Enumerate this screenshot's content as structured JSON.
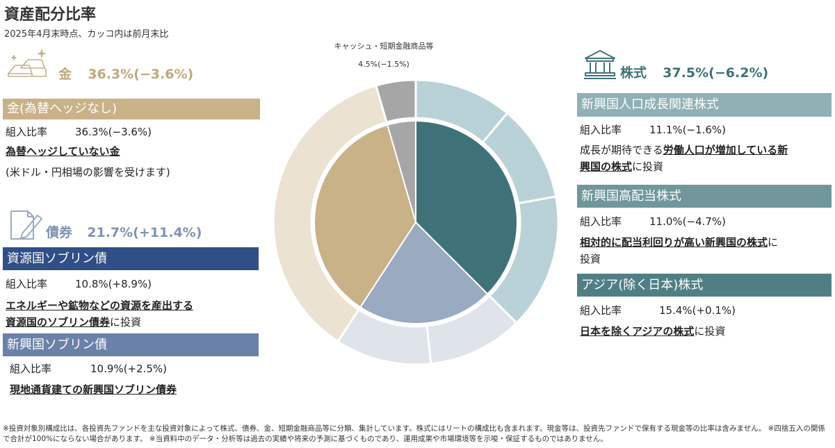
{
  "header": {
    "title": "資産配分比率",
    "subtitle": "2025年4月末時点、カッコ内は前月末比"
  },
  "cash": {
    "label": "キャッシュ・短期金融商品等",
    "value": "4.5%(−1.5%)"
  },
  "gold": {
    "head_label": "金",
    "head_value": "36.3%(−3.6%)",
    "sub": {
      "bar_label": "金(為替ヘッジなし)",
      "ratio_label": "組入比率",
      "ratio_value": "36.3%(−3.6%)",
      "desc_u": "為替ヘッジしていない金",
      "desc_note": "(米ドル・円相場の影響を受けます)"
    }
  },
  "bonds": {
    "head_label": "債券",
    "head_value": "21.7%(+11.4%)",
    "subs": [
      {
        "bar_label": "資源国ソブリン債",
        "ratio_label": "組入比率",
        "ratio_value": "10.8%(+8.9%)",
        "desc_u1": "エネルギーや鉱物などの資源を産出する",
        "desc_u2": "資源国のソブリン債券",
        "desc_rest": "に投資"
      },
      {
        "bar_label": "新興国ソブリン債",
        "ratio_label": "組入比率",
        "ratio_value": "10.9%(+2.5%)",
        "desc_u": "現地通貨建ての新興国ソブリン債券"
      }
    ]
  },
  "equity": {
    "head_label": "株式",
    "head_value": "37.5%(−6.2%)",
    "subs": [
      {
        "bar_label": "新興国人口成長関連株式",
        "ratio_label": "組入比率",
        "ratio_value": "11.1%(−1.6%)",
        "desc_pre": "成長が期待できる",
        "desc_u1": "労働人口が増加している新",
        "desc_u2": "興国の株式",
        "desc_rest": "に投資"
      },
      {
        "bar_label": "新興国高配当株式",
        "ratio_label": "組入比率",
        "ratio_value": "11.0%(−4.7%)",
        "desc_u": "相対的に配当利回りが高い新興国の株式",
        "desc_rest1": "に",
        "desc_rest2": "投資"
      },
      {
        "bar_label": "アジア(除く日本)株式",
        "ratio_label": "組入比率",
        "ratio_value": "15.4%(+0.1%)",
        "desc_u": "日本を除くアジアの株式",
        "desc_rest": "に投資"
      }
    ]
  },
  "footnote": "※投資対象別構成比は、各投資先ファンドを主な投資対象によって株式、債券、金、短期金融商品等に分類、集計しています。株式にはリートの構成比も含まれます。現金等は、投資先ファンドで保有する現金等の比率は含みません。 ※四捨五入の関係で合計が100%にならない場合があります。 ※当資料中のデータ・分析等は過去の実績や将来の予測に基づくものであり、運用成果や市場環境等を示唆・保証するものではありません。",
  "colors": {
    "equity_inner": "#3f7278",
    "equity_outer": "#b9d2d7",
    "bond_inner": "#9aaac0",
    "bond_outer": "#dfe3ea",
    "gold_inner": "#c9b188",
    "gold_outer": "#ece2d2",
    "cash": "#a6a6a6",
    "gold_bar": "#c9b188",
    "gold_text": "#c0a87c",
    "bond_bar1": "#2f4f86",
    "bond_bar2": "#6a82aa",
    "bond_text": "#7f93b6",
    "equity_bar1": "#8fb0b5",
    "equity_bar2": "#6f979c",
    "equity_bar3": "#4f7f85",
    "equity_text": "#3f7278"
  },
  "chart_data": {
    "type": "pie",
    "inner": [
      {
        "name": "株式",
        "value": 37.5
      },
      {
        "name": "債券",
        "value": 21.7
      },
      {
        "name": "金",
        "value": 36.3
      },
      {
        "name": "キャッシュ・短期金融商品等",
        "value": 4.5
      }
    ],
    "outer": [
      {
        "name": "新興国人口成長関連株式",
        "group": "株式",
        "value": 11.1
      },
      {
        "name": "新興国高配当株式",
        "group": "株式",
        "value": 11.0
      },
      {
        "name": "アジア(除く日本)株式",
        "group": "株式",
        "value": 15.4
      },
      {
        "name": "資源国ソブリン債",
        "group": "債券",
        "value": 10.8
      },
      {
        "name": "新興国ソブリン債",
        "group": "債券",
        "value": 10.9
      },
      {
        "name": "金(為替ヘッジなし)",
        "group": "金",
        "value": 36.3
      },
      {
        "name": "キャッシュ・短期金融商品等",
        "group": "キャッシュ",
        "value": 4.5
      }
    ]
  }
}
